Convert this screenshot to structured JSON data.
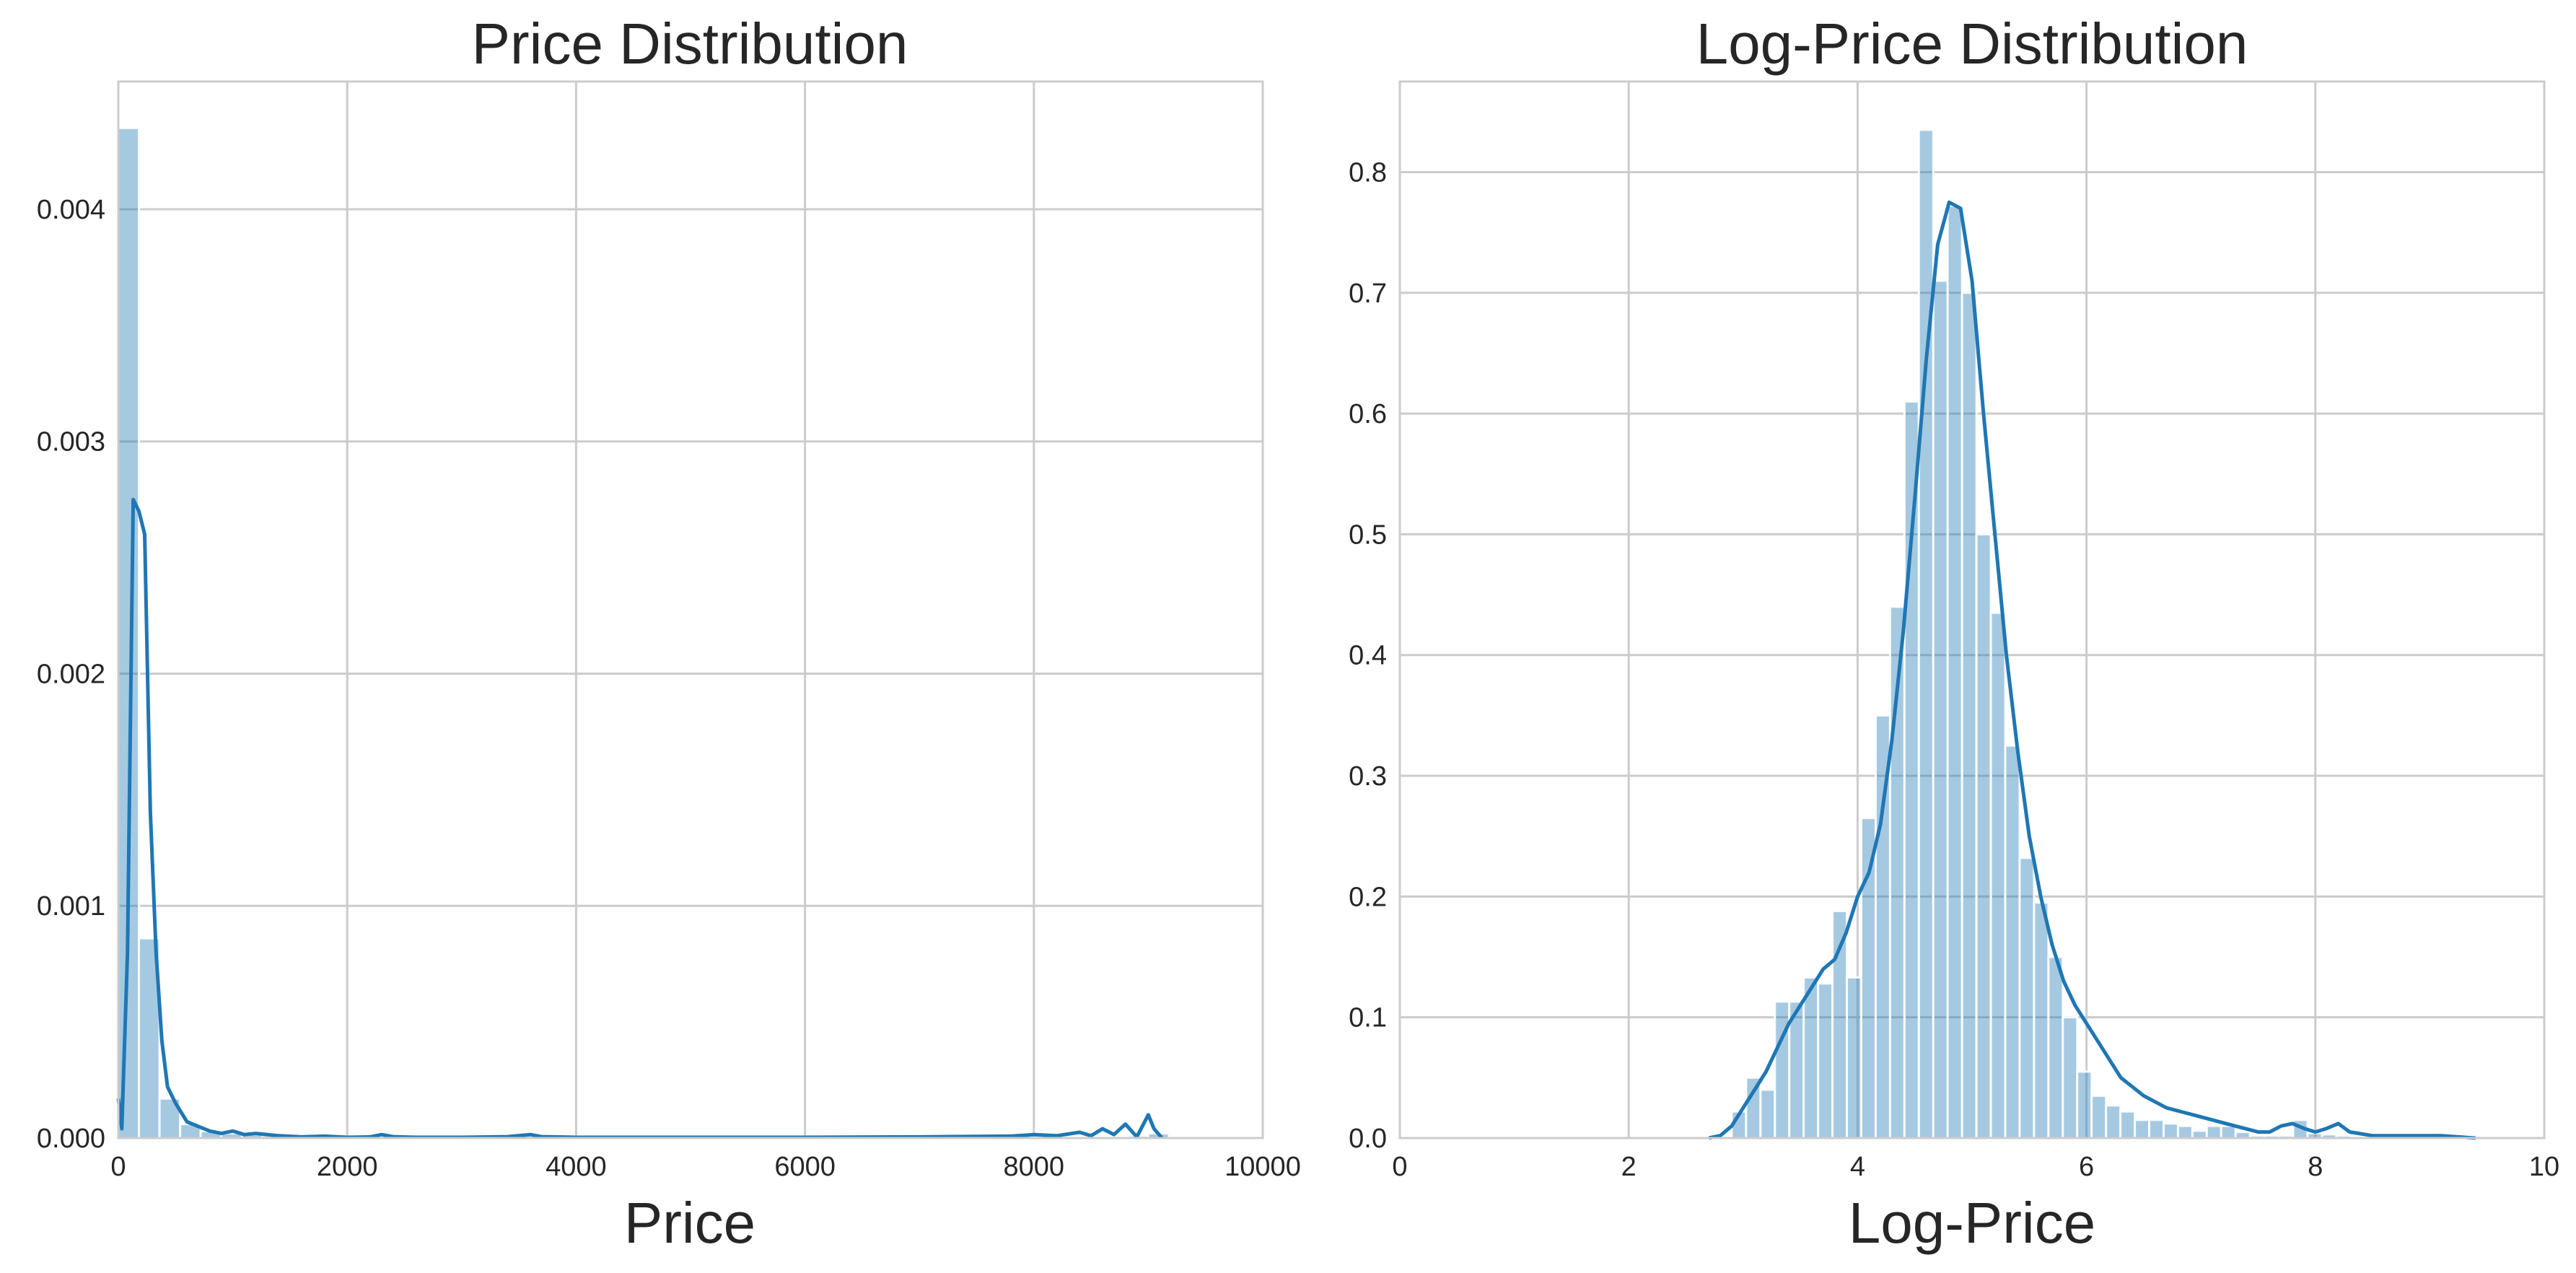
{
  "chart_data": [
    {
      "type": "histogram",
      "title": "Price Distribution",
      "xlabel": "Price",
      "ylabel": "",
      "xlim": [
        0,
        10000
      ],
      "ylim": [
        0,
        0.00455
      ],
      "xticks": [
        0,
        2000,
        4000,
        6000,
        8000,
        10000
      ],
      "yticks": [
        0.0,
        0.001,
        0.002,
        0.003,
        0.004
      ],
      "ytick_labels": [
        "0.000",
        "0.001",
        "0.002",
        "0.003",
        "0.004"
      ],
      "grid": true,
      "colors": {
        "bars": "#1f77b4",
        "bar_alpha": 0.4,
        "kde": "#1f77b4",
        "grid": "#cccccc",
        "spine": "#cccccc"
      },
      "bins": {
        "edges_start": 0,
        "bin_width": 180,
        "densities": [
          0.00435,
          0.00086,
          0.00017,
          6e-05,
          3e-05,
          2e-05,
          1.5e-05,
          1e-05,
          8e-06,
          6e-06,
          5e-06,
          4e-06,
          3e-06,
          4e-06,
          3e-06,
          3e-06,
          2e-06,
          2e-06,
          2e-06,
          2e-06,
          2e-06,
          2e-06,
          2e-06,
          2e-06,
          2e-06,
          2e-06,
          2e-06,
          2e-06,
          2e-06,
          2e-06,
          2e-06,
          2e-06,
          2e-06,
          2e-06,
          2e-06,
          2e-06,
          2e-06,
          2e-06,
          2e-06,
          2e-06,
          2e-06,
          2e-06,
          2e-06,
          2e-06,
          2e-06,
          3e-06,
          3e-06,
          4e-06,
          6e-06,
          1e-05,
          2e-05
        ]
      },
      "kde": {
        "x": [
          0,
          30,
          80,
          130,
          180,
          230,
          280,
          330,
          380,
          430,
          500,
          600,
          700,
          800,
          900,
          1000,
          1100,
          1200,
          1400,
          1600,
          1800,
          2000,
          2200,
          2300,
          2400,
          2600,
          3000,
          3400,
          3600,
          3700,
          4000,
          5000,
          6000,
          7000,
          7800,
          8000,
          8200,
          8400,
          8500,
          8600,
          8700,
          8800,
          8900,
          9000,
          9050,
          9120
        ],
        "y": [
          0.00017,
          4e-05,
          0.0008,
          0.00275,
          0.0027,
          0.0026,
          0.0014,
          0.0008,
          0.00042,
          0.00022,
          0.00015,
          7e-05,
          5e-05,
          3e-05,
          2e-05,
          3e-05,
          1.5e-05,
          2e-05,
          1e-05,
          5e-06,
          8e-06,
          3e-06,
          5e-06,
          1.5e-05,
          6e-06,
          3e-06,
          3e-06,
          6e-06,
          1.5e-05,
          6e-06,
          3e-06,
          3e-06,
          3e-06,
          5e-06,
          8e-06,
          1.5e-05,
          1e-05,
          2.5e-05,
          1e-05,
          4e-05,
          1.5e-05,
          6e-05,
          5e-06,
          0.0001,
          4e-05,
          0.0
        ]
      }
    },
    {
      "type": "histogram",
      "title": "Log-Price Distribution",
      "xlabel": "Log-Price",
      "ylabel": "",
      "xlim": [
        0,
        10
      ],
      "ylim": [
        0,
        0.875
      ],
      "xticks": [
        0,
        2,
        4,
        6,
        8,
        10
      ],
      "yticks": [
        0.0,
        0.1,
        0.2,
        0.3,
        0.4,
        0.5,
        0.6,
        0.7,
        0.8
      ],
      "ytick_labels": [
        "0.0",
        "0.1",
        "0.2",
        "0.3",
        "0.4",
        "0.5",
        "0.6",
        "0.7",
        "0.8"
      ],
      "grid": true,
      "colors": {
        "bars": "#1f77b4",
        "bar_alpha": 0.4,
        "kde": "#1f77b4",
        "grid": "#cccccc",
        "spine": "#cccccc"
      },
      "bins": {
        "edges_start": 2.9,
        "bin_width": 0.1258,
        "densities": [
          0.022,
          0.05,
          0.04,
          0.113,
          0.113,
          0.133,
          0.128,
          0.188,
          0.133,
          0.265,
          0.35,
          0.44,
          0.61,
          0.835,
          0.71,
          0.772,
          0.7,
          0.5,
          0.435,
          0.325,
          0.232,
          0.195,
          0.15,
          0.1,
          0.055,
          0.035,
          0.027,
          0.022,
          0.015,
          0.015,
          0.012,
          0.01,
          0.006,
          0.01,
          0.01,
          0.005,
          0.002,
          0.002,
          0.002,
          0.015,
          0.004,
          0.003,
          0.002,
          0.001,
          0.001,
          0.001,
          0.001,
          0.001,
          0.001,
          0.001,
          0.001
        ]
      },
      "kde": {
        "x": [
          2.7,
          2.8,
          2.9,
          3.0,
          3.1,
          3.2,
          3.3,
          3.4,
          3.5,
          3.6,
          3.7,
          3.8,
          3.9,
          4.0,
          4.1,
          4.2,
          4.3,
          4.4,
          4.5,
          4.6,
          4.7,
          4.8,
          4.9,
          5.0,
          5.1,
          5.2,
          5.3,
          5.4,
          5.5,
          5.6,
          5.7,
          5.8,
          5.9,
          6.0,
          6.1,
          6.2,
          6.3,
          6.5,
          6.7,
          6.9,
          7.1,
          7.3,
          7.5,
          7.6,
          7.7,
          7.8,
          7.9,
          8.0,
          8.1,
          8.2,
          8.3,
          8.5,
          8.8,
          9.1,
          9.4
        ],
        "y": [
          0.0,
          0.002,
          0.01,
          0.025,
          0.04,
          0.055,
          0.075,
          0.095,
          0.11,
          0.125,
          0.14,
          0.148,
          0.17,
          0.2,
          0.22,
          0.26,
          0.33,
          0.42,
          0.53,
          0.645,
          0.74,
          0.775,
          0.77,
          0.71,
          0.6,
          0.5,
          0.4,
          0.32,
          0.25,
          0.2,
          0.16,
          0.13,
          0.11,
          0.095,
          0.08,
          0.065,
          0.05,
          0.035,
          0.025,
          0.02,
          0.015,
          0.01,
          0.005,
          0.005,
          0.01,
          0.012,
          0.008,
          0.005,
          0.008,
          0.012,
          0.005,
          0.002,
          0.002,
          0.002,
          0.0
        ]
      }
    }
  ]
}
